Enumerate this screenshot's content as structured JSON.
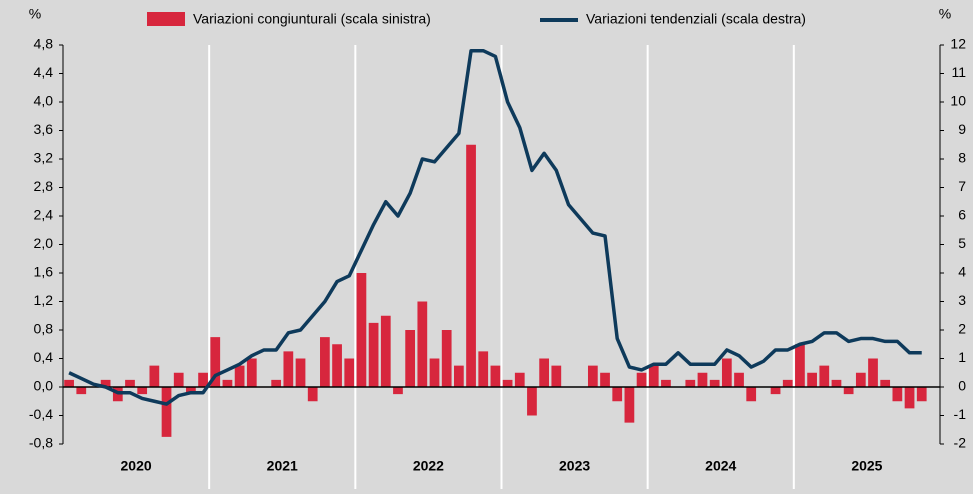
{
  "chart_data": {
    "type": "bar_line",
    "y_label": "%",
    "y2_label": "%",
    "years": [
      "2020",
      "2021",
      "2022",
      "2023",
      "2024",
      "2025"
    ],
    "series": [
      {
        "name": "Variazioni congiunturali (scala sinistra)",
        "type": "bar",
        "color": "#d7263d",
        "values": [
          0.1,
          -0.1,
          0.0,
          0.1,
          -0.2,
          0.1,
          -0.1,
          0.3,
          -0.7,
          0.2,
          -0.1,
          0.2,
          0.7,
          0.1,
          0.3,
          0.4,
          0.0,
          0.1,
          0.5,
          0.4,
          -0.2,
          0.7,
          0.6,
          0.4,
          1.6,
          0.9,
          1.0,
          -0.1,
          0.8,
          1.2,
          0.4,
          0.8,
          0.3,
          3.4,
          0.5,
          0.3,
          0.1,
          0.2,
          -0.4,
          0.4,
          0.3,
          0.0,
          0.0,
          0.3,
          0.2,
          -0.2,
          -0.5,
          0.2,
          0.3,
          0.1,
          0.0,
          0.1,
          0.2,
          0.1,
          0.4,
          0.2,
          -0.2,
          0.0,
          -0.1,
          0.1,
          0.6,
          0.2,
          0.3,
          0.1,
          -0.1,
          0.2,
          0.4,
          0.1,
          -0.2,
          -0.3,
          -0.2
        ]
      },
      {
        "name": "Variazioni tendenziali (scala destra)",
        "type": "line",
        "color": "#0e3a5b",
        "axis": "y2",
        "values": [
          0.5,
          0.3,
          0.1,
          0.0,
          -0.2,
          -0.2,
          -0.4,
          -0.5,
          -0.6,
          -0.3,
          -0.2,
          -0.2,
          0.4,
          0.6,
          0.8,
          1.1,
          1.3,
          1.3,
          1.9,
          2.0,
          2.5,
          3.0,
          3.7,
          3.9,
          4.8,
          5.7,
          6.5,
          6.0,
          6.8,
          8.0,
          7.9,
          8.4,
          8.9,
          11.8,
          11.8,
          11.6,
          10.0,
          9.1,
          7.6,
          8.2,
          7.6,
          6.4,
          5.9,
          5.4,
          5.3,
          1.7,
          0.7,
          0.6,
          0.8,
          0.8,
          1.2,
          0.8,
          0.8,
          0.8,
          1.3,
          1.1,
          0.7,
          0.9,
          1.3,
          1.3,
          1.5,
          1.6,
          1.9,
          1.9,
          1.6,
          1.7,
          1.7,
          1.6,
          1.6,
          1.2,
          1.2
        ]
      }
    ],
    "ylim": [
      -0.8,
      4.8
    ],
    "yticks": [
      {
        "value": -0.8,
        "label": "-0,8"
      },
      {
        "value": -0.4,
        "label": "-0,4"
      },
      {
        "value": 0,
        "label": "0,0"
      },
      {
        "value": 0.4,
        "label": "0,4"
      },
      {
        "value": 0.8,
        "label": "0,8"
      },
      {
        "value": 1.2,
        "label": "1,2"
      },
      {
        "value": 1.6,
        "label": "1,6"
      },
      {
        "value": 2.0,
        "label": "2,0"
      },
      {
        "value": 2.4,
        "label": "2,4"
      },
      {
        "value": 2.8,
        "label": "2,8"
      },
      {
        "value": 3.2,
        "label": "3,2"
      },
      {
        "value": 3.6,
        "label": "3,6"
      },
      {
        "value": 4.0,
        "label": "4,0"
      },
      {
        "value": 4.4,
        "label": "4,4"
      },
      {
        "value": 4.8,
        "label": "4,8"
      }
    ],
    "y2lim": [
      -2,
      12
    ],
    "y2ticks": [
      -2,
      -1,
      0,
      1,
      2,
      3,
      4,
      5,
      6,
      7,
      8,
      9,
      10,
      11,
      12
    ],
    "legend": "top"
  }
}
